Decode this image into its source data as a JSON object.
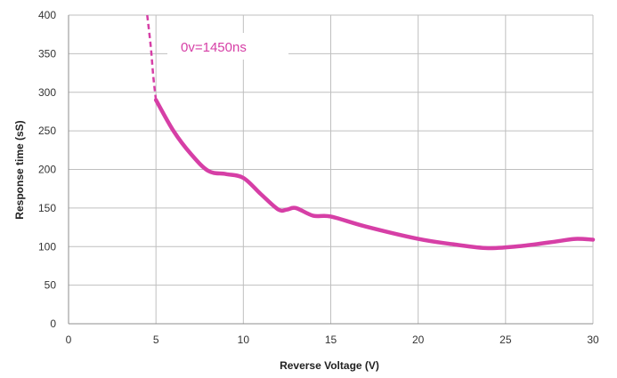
{
  "chart_data": {
    "type": "line",
    "title": "",
    "xlabel": "Reverse Voltage (V)",
    "ylabel": "Response time (sS)",
    "xlim": [
      0,
      30
    ],
    "ylim": [
      0,
      400
    ],
    "x_ticks": [
      "0",
      "5",
      "10",
      "15",
      "20",
      "25",
      "30"
    ],
    "y_ticks": [
      "0",
      "50",
      "100",
      "150",
      "200",
      "250",
      "300",
      "350",
      "400"
    ],
    "grid": true,
    "legend": "none",
    "annotation": "0v=1450ns",
    "colors": {
      "series": "#d63fa6",
      "grid": "#bfbfbf",
      "axis": "#8c8c8c"
    },
    "series": [
      {
        "dashed_segment": [
          {
            "x": 4.5,
            "y": 400
          },
          {
            "x": 4.7,
            "y": 360
          },
          {
            "x": 4.85,
            "y": 320
          },
          {
            "x": 5.0,
            "y": 290
          }
        ],
        "values": [
          {
            "x": 5,
            "y": 290
          },
          {
            "x": 6,
            "y": 250
          },
          {
            "x": 7,
            "y": 220
          },
          {
            "x": 8,
            "y": 198
          },
          {
            "x": 9,
            "y": 194
          },
          {
            "x": 10,
            "y": 189
          },
          {
            "x": 11,
            "y": 168
          },
          {
            "x": 12,
            "y": 148
          },
          {
            "x": 12.5,
            "y": 148
          },
          {
            "x": 13,
            "y": 150
          },
          {
            "x": 14,
            "y": 140
          },
          {
            "x": 15,
            "y": 139
          },
          {
            "x": 17,
            "y": 126
          },
          {
            "x": 20,
            "y": 110
          },
          {
            "x": 22,
            "y": 103
          },
          {
            "x": 24,
            "y": 98
          },
          {
            "x": 26,
            "y": 101
          },
          {
            "x": 28,
            "y": 107
          },
          {
            "x": 29,
            "y": 110
          },
          {
            "x": 30,
            "y": 109
          }
        ]
      }
    ]
  }
}
